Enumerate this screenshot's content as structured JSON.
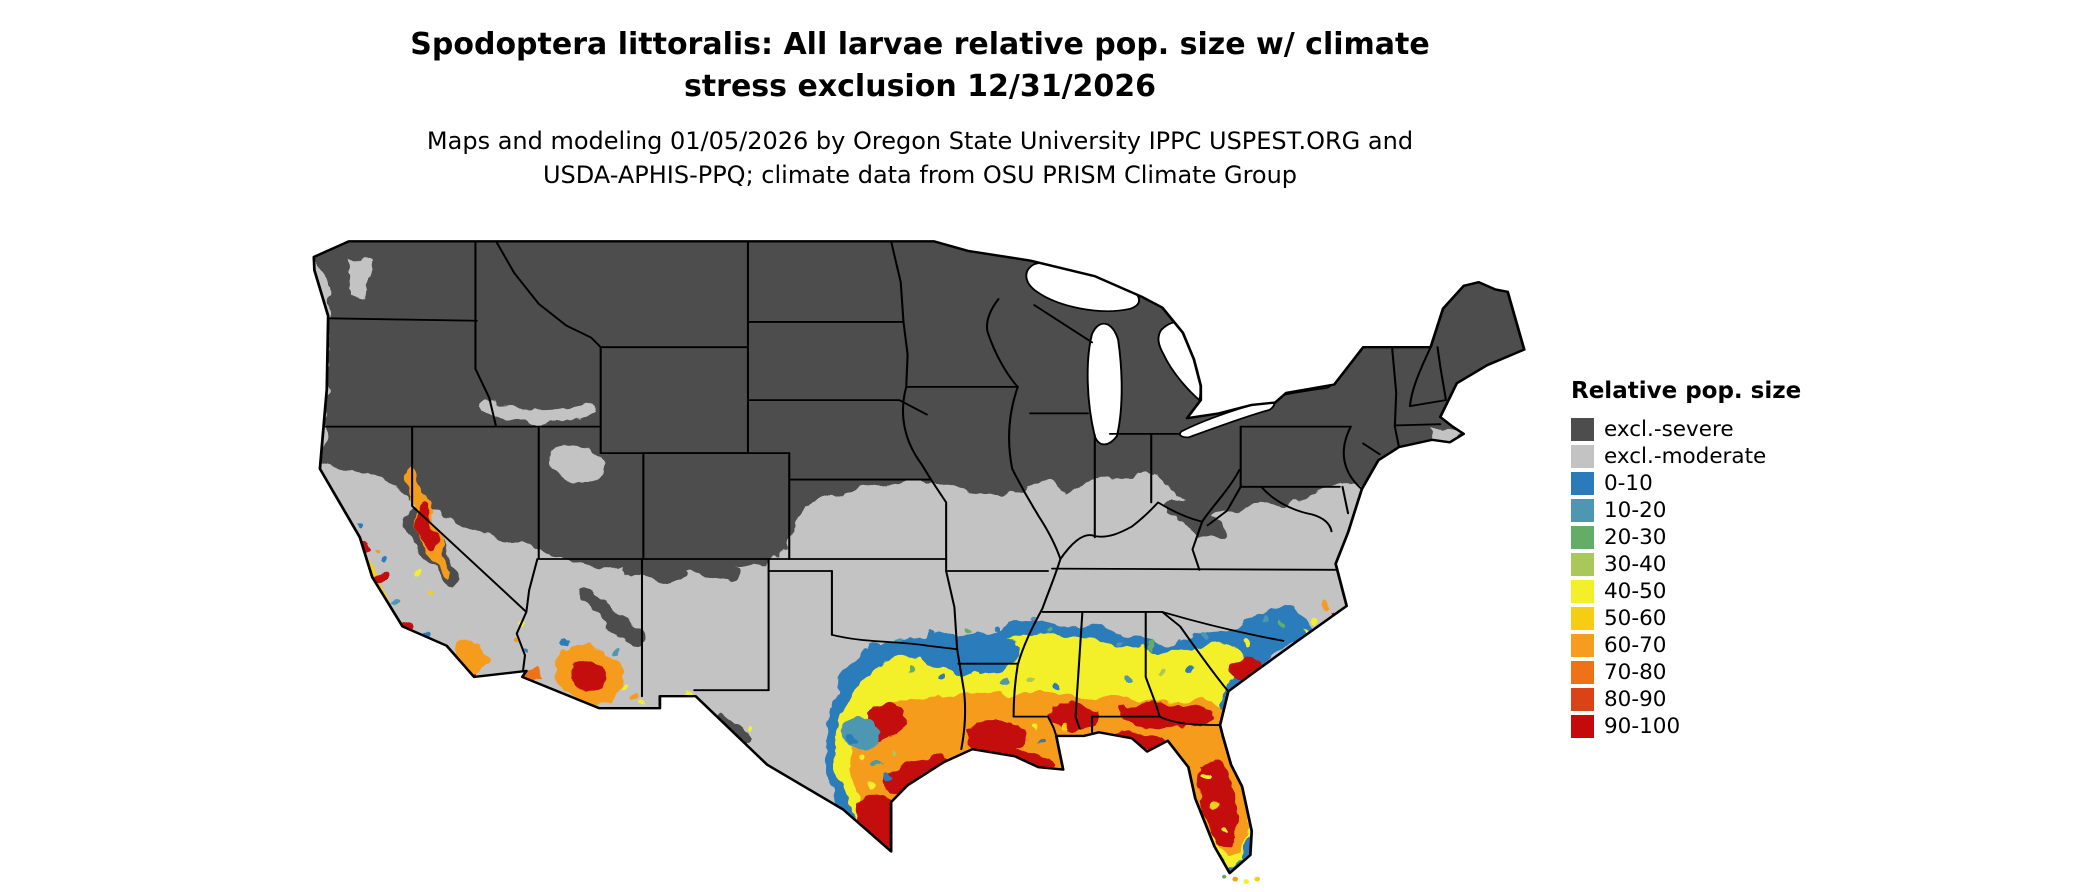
{
  "title": {
    "line1": "Spodoptera littoralis: All larvae relative pop. size w/ climate",
    "line2": "stress exclusion 12/31/2026"
  },
  "subtitle": {
    "line1": "Maps and modeling 01/05/2026 by Oregon State University IPPC USPEST.ORG and",
    "line2": "USDA-APHIS-PPQ; climate data from OSU PRISM Climate Group"
  },
  "legend": {
    "title": "Relative pop. size",
    "items": [
      {
        "label": "excl.-severe",
        "color": "#4D4D4D"
      },
      {
        "label": "excl.-moderate",
        "color": "#C3C3C3"
      },
      {
        "label": "0-10",
        "color": "#2B7BBA"
      },
      {
        "label": "10-20",
        "color": "#4D97B2"
      },
      {
        "label": "20-30",
        "color": "#63AD69"
      },
      {
        "label": "30-40",
        "color": "#A9C75A"
      },
      {
        "label": "40-50",
        "color": "#F3F02A"
      },
      {
        "label": "50-60",
        "color": "#F5CE13"
      },
      {
        "label": "60-70",
        "color": "#F69C1E"
      },
      {
        "label": "70-80",
        "color": "#EE7218"
      },
      {
        "label": "80-90",
        "color": "#DB4216"
      },
      {
        "label": "90-100",
        "color": "#C40A0A"
      }
    ]
  }
}
